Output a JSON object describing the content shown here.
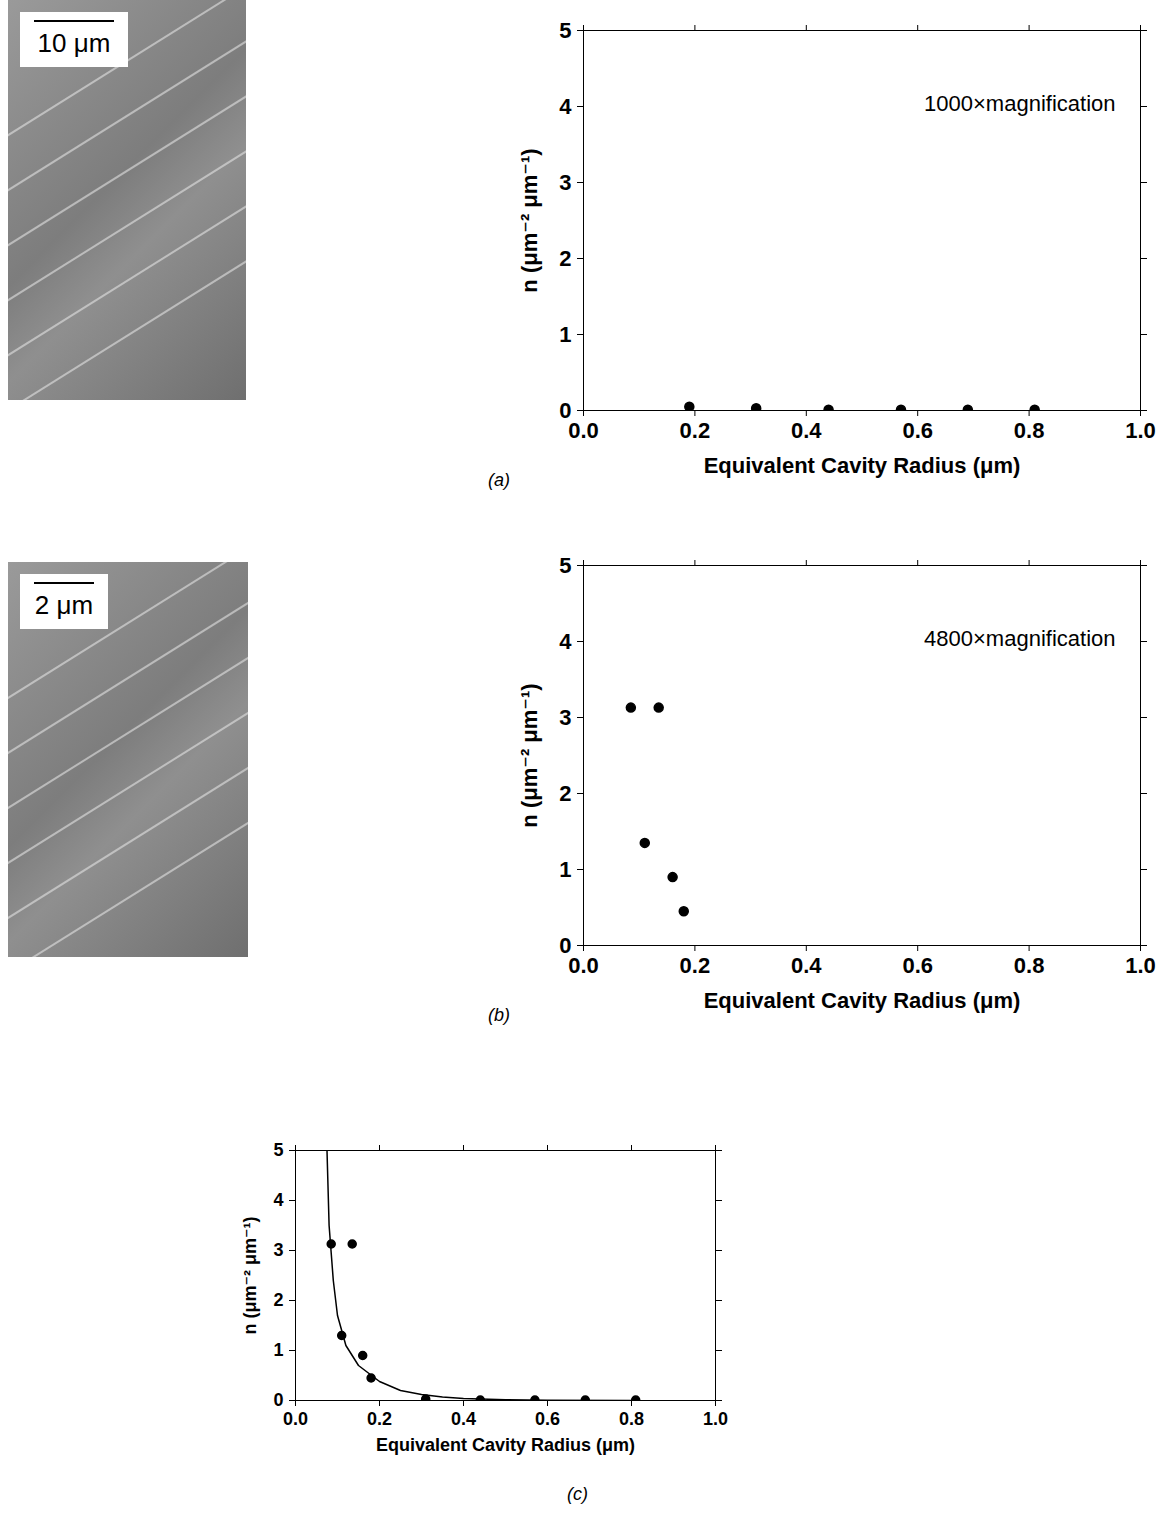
{
  "images": [
    {
      "scale_bar": "10 μm"
    },
    {
      "scale_bar": "2 μm"
    }
  ],
  "chart_data": [
    {
      "type": "scatter",
      "panel": "(a)",
      "annotation": "1000×magnification",
      "color": "#000000",
      "x_label": "Equivalent Cavity Radius (μm)",
      "y_label": "n (μm⁻² μm⁻¹)",
      "x": [
        0.19,
        0.31,
        0.44,
        0.57,
        0.69,
        0.81
      ],
      "values": [
        0.05,
        0.03,
        0.01,
        0.01,
        0.01,
        0.01
      ],
      "xlim": [
        0,
        1
      ],
      "ylim": [
        0,
        5
      ],
      "xticks": [
        {
          "value": 0,
          "label": "0.0"
        },
        {
          "value": 0.2,
          "label": "0.2"
        },
        {
          "value": 0.4,
          "label": "0.4"
        },
        {
          "value": 0.6,
          "label": "0.6"
        },
        {
          "value": 0.8,
          "label": "0.8"
        },
        {
          "value": 1,
          "label": "1.0"
        }
      ],
      "yticks": [
        0,
        1,
        2,
        3,
        4,
        5
      ],
      "marker": "circle"
    },
    {
      "type": "scatter",
      "panel": "(b)",
      "annotation": "4800×magnification",
      "color": "#000000",
      "x_label": "Equivalent Cavity Radius (μm)",
      "y_label": "n (μm⁻² μm⁻¹)",
      "x": [
        0.085,
        0.135,
        0.11,
        0.16,
        0.18
      ],
      "values": [
        3.13,
        3.13,
        1.35,
        0.9,
        0.45
      ],
      "xlim": [
        0,
        1
      ],
      "ylim": [
        0,
        5
      ],
      "xticks": [
        {
          "value": 0,
          "label": "0.0"
        },
        {
          "value": 0.2,
          "label": "0.2"
        },
        {
          "value": 0.4,
          "label": "0.4"
        },
        {
          "value": 0.6,
          "label": "0.6"
        },
        {
          "value": 0.8,
          "label": "0.8"
        },
        {
          "value": 1,
          "label": "1.0"
        }
      ],
      "yticks": [
        0,
        1,
        2,
        3,
        4,
        5
      ],
      "marker": "circle"
    },
    {
      "type": "scatter",
      "panel": "(c)",
      "color": "#000000",
      "x_label": "Equivalent Cavity Radius (μm)",
      "y_label": "n (μm⁻² μm⁻¹)",
      "series": [
        {
          "type": "scatter",
          "marker": "circle",
          "x": [
            0.085,
            0.135,
            0.11,
            0.16,
            0.18,
            0.31,
            0.44,
            0.57,
            0.69,
            0.81
          ],
          "values": [
            3.13,
            3.13,
            1.3,
            0.9,
            0.45,
            0.03,
            0.01,
            0.01,
            0.01,
            0.01
          ]
        },
        {
          "type": "line",
          "line_style": "solid",
          "x": [
            0.075,
            0.08,
            0.09,
            0.1,
            0.12,
            0.15,
            0.2,
            0.25,
            0.3,
            0.35,
            0.4,
            0.5,
            0.6,
            0.8
          ],
          "values": [
            5.0,
            3.5,
            2.4,
            1.7,
            1.1,
            0.7,
            0.38,
            0.2,
            0.12,
            0.07,
            0.04,
            0.015,
            0.006,
            0.001
          ]
        }
      ],
      "xlim": [
        0,
        1
      ],
      "ylim": [
        0,
        5
      ],
      "xticks": [
        {
          "value": 0,
          "label": "0.0"
        },
        {
          "value": 0.2,
          "label": "0.2"
        },
        {
          "value": 0.4,
          "label": "0.4"
        },
        {
          "value": 0.6,
          "label": "0.6"
        },
        {
          "value": 0.8,
          "label": "0.8"
        },
        {
          "value": 1,
          "label": "1.0"
        }
      ],
      "yticks": [
        0,
        1,
        2,
        3,
        4,
        5
      ]
    }
  ]
}
